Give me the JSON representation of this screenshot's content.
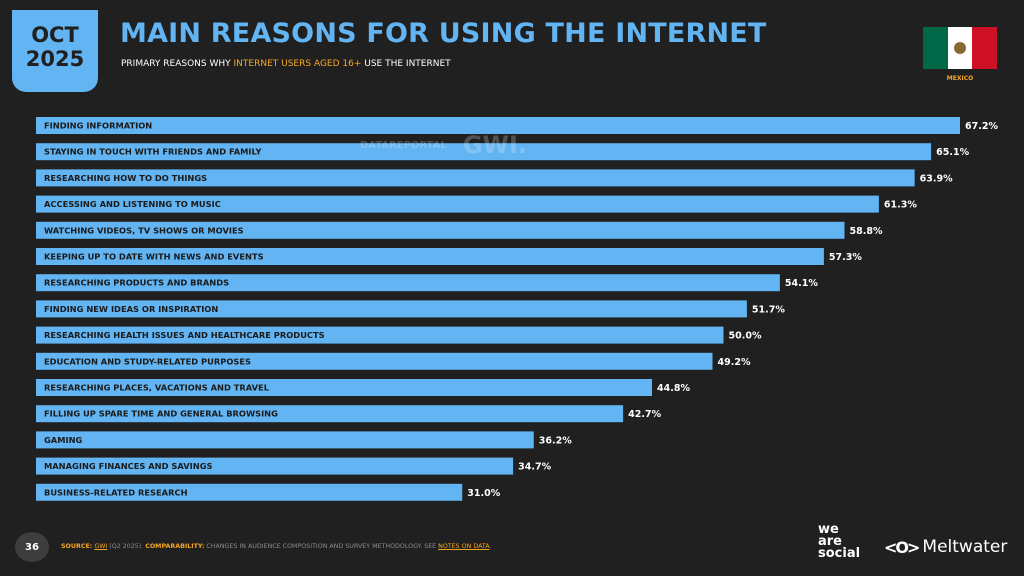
{
  "badge": {
    "month": "OCT",
    "year": "2025"
  },
  "title": "MAIN REASONS FOR USING THE INTERNET",
  "subtitle": {
    "before": "PRIMARY REASONS WHY ",
    "highlight": "INTERNET USERS AGED 16+",
    "after": " USE THE INTERNET"
  },
  "country": "MEXICO",
  "watermark": {
    "datareportal": "DATAREPORTAL",
    "gwi": "GWI."
  },
  "page_number": "36",
  "footnote": {
    "source_key": "SOURCE:",
    "source_link": "GWI",
    "source_text": " (Q2 2025). ",
    "comparability_key": "COMPARABILITY:",
    "comparability_text": " CHANGES IN AUDIENCE COMPOSITION AND SURVEY METHODOLOGY. SEE ",
    "notes_link": "NOTES ON DATA",
    "end": "."
  },
  "logos": {
    "was_line1": "we",
    "was_line2": "are",
    "was_line3": "social",
    "meltwater_mark": "<O>",
    "meltwater": "Meltwater"
  },
  "colors": {
    "background": "#202020",
    "accent": "#62b4f2",
    "highlight": "#f6a623",
    "bar": "#62b4f2",
    "label": "#1a1a1a"
  },
  "chart_data": {
    "type": "bar",
    "orientation": "horizontal",
    "categories": [
      "FINDING INFORMATION",
      "STAYING IN TOUCH WITH FRIENDS AND FAMILY",
      "RESEARCHING HOW TO DO THINGS",
      "ACCESSING AND LISTENING TO MUSIC",
      "WATCHING VIDEOS, TV SHOWS OR MOVIES",
      "KEEPING UP TO DATE WITH NEWS AND EVENTS",
      "RESEARCHING PRODUCTS AND BRANDS",
      "FINDING NEW IDEAS OR INSPIRATION",
      "RESEARCHING HEALTH ISSUES AND HEALTHCARE PRODUCTS",
      "EDUCATION AND STUDY-RELATED PURPOSES",
      "RESEARCHING PLACES, VACATIONS AND TRAVEL",
      "FILLING UP SPARE TIME AND GENERAL BROWSING",
      "GAMING",
      "MANAGING FINANCES AND SAVINGS",
      "BUSINESS-RELATED RESEARCH"
    ],
    "values": [
      67.2,
      65.1,
      63.9,
      61.3,
      58.8,
      57.3,
      54.1,
      51.7,
      50.0,
      49.2,
      44.8,
      42.7,
      36.2,
      34.7,
      31.0
    ],
    "value_labels": [
      "67.2%",
      "65.1%",
      "63.9%",
      "61.3%",
      "58.8%",
      "57.3%",
      "54.1%",
      "51.7%",
      "50.0%",
      "49.2%",
      "44.8%",
      "42.7%",
      "36.2%",
      "34.7%",
      "31.0%"
    ],
    "unit": "%",
    "xlim": [
      0,
      67.2
    ],
    "grid": false,
    "legend": "none"
  }
}
